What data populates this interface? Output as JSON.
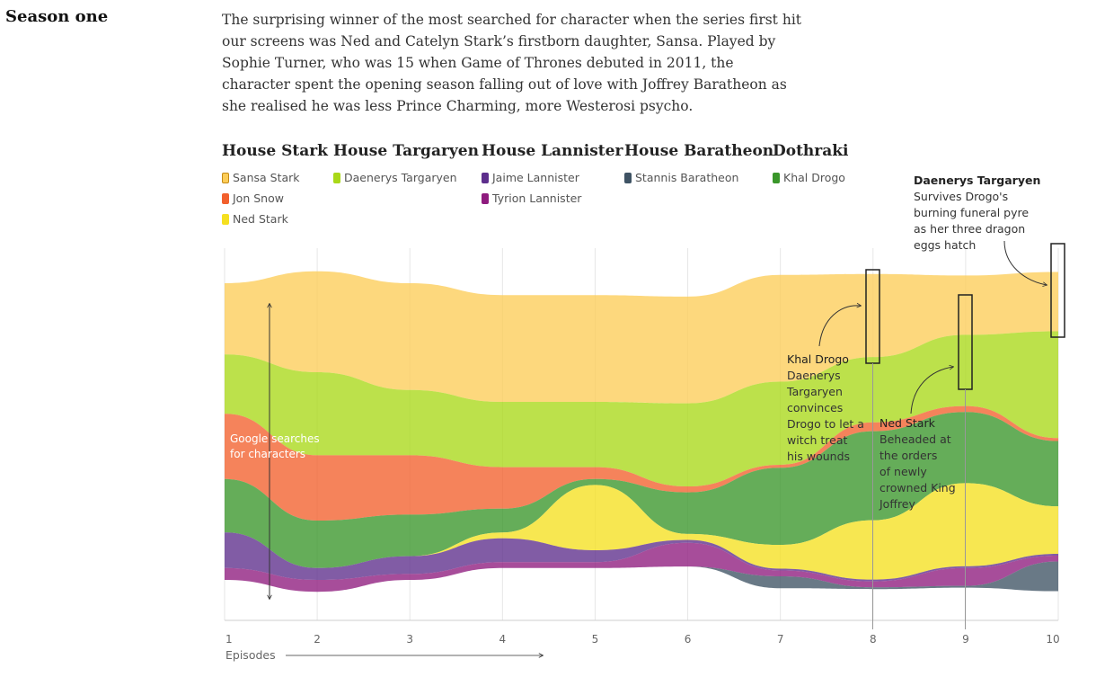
{
  "section": {
    "title": "Season one",
    "intro": "The surprising winner of the most searched for character when the series first hit our screens was Ned and Catelyn Stark’s firstborn daughter, Sansa. Played by Sophie Turner, who was 15 when Game of Thrones debuted in 2011, the character spent the opening season falling out of love with Joffrey Baratheon as she realised he was less Prince Charming, more Westerosi psycho."
  },
  "houses": [
    {
      "name": "House Stark",
      "characters": [
        {
          "name": "Sansa Stark",
          "color": "#fdcd58"
        },
        {
          "name": "Jon Snow",
          "color": "#f2602d"
        },
        {
          "name": "Ned Stark",
          "color": "#f5e020"
        }
      ]
    },
    {
      "name": "House Targaryen",
      "characters": [
        {
          "name": "Daenerys Targaryen",
          "color": "#a9d818"
        }
      ]
    },
    {
      "name": "House Lannister",
      "characters": [
        {
          "name": "Jaime Lannister",
          "color": "#5d2e8c"
        },
        {
          "name": "Tyrion Lannister",
          "color": "#8e1b7e"
        }
      ]
    },
    {
      "name": "House Baratheon",
      "characters": [
        {
          "name": "Stannis Baratheon",
          "color": "#3f5364"
        }
      ]
    },
    {
      "name": "Dothraki",
      "characters": [
        {
          "name": "Khal Drogo",
          "color": "#3a962a"
        }
      ]
    }
  ],
  "chart_data": {
    "type": "area",
    "xlabel": "Episodes",
    "ylabel": "Google searches for characters",
    "x": [
      1,
      2,
      3,
      4,
      5,
      6,
      7,
      8,
      9,
      10
    ],
    "series": [
      {
        "name": "Sansa Stark",
        "color": "#fdcd58",
        "values": [
          12,
          17,
          18,
          18,
          18,
          18,
          18,
          14,
          10,
          10
        ]
      },
      {
        "name": "Daenerys Targaryen",
        "color": "#a9d818",
        "values": [
          10,
          14,
          11,
          11,
          11,
          14,
          14,
          11,
          12,
          18
        ]
      },
      {
        "name": "Jon Snow",
        "color": "#f2602d",
        "values": [
          11,
          11,
          10,
          7,
          2,
          1,
          0.5,
          1.5,
          1,
          0.5
        ]
      },
      {
        "name": "Khal Drogo",
        "color": "#3a962a",
        "values": [
          9,
          8,
          7,
          4,
          1,
          7,
          13,
          15,
          12,
          11
        ]
      },
      {
        "name": "Ned Stark",
        "color": "#f5e020",
        "values": [
          0,
          0,
          0,
          1,
          11,
          1,
          4,
          10,
          14,
          8
        ]
      },
      {
        "name": "Jaime Lannister",
        "color": "#5d2e8c",
        "values": [
          6,
          2,
          3,
          4,
          2,
          0.5,
          0.3,
          0.3,
          0.3,
          0.3
        ]
      },
      {
        "name": "Tyrion Lannister",
        "color": "#8e1b7e",
        "values": [
          2,
          2,
          1,
          1,
          1,
          4,
          1,
          1,
          3,
          1
        ]
      },
      {
        "name": "Stannis Baratheon",
        "color": "#3f5364",
        "values": [
          0,
          0,
          0,
          0,
          0,
          0,
          2,
          0.3,
          0.3,
          5
        ]
      }
    ],
    "annotations": [
      {
        "title": "Khal Drogo",
        "text": "Daenerys Targaryen convinces Drogo to let a witch treat his wounds"
      },
      {
        "title": "Ned Stark",
        "text": "Beheaded at the orders of newly crowned King Joffrey"
      },
      {
        "title": "Daenerys Targaryen",
        "text": "Survives Drogo's burning funeral pyre as her three dragon eggs hatch"
      }
    ]
  }
}
